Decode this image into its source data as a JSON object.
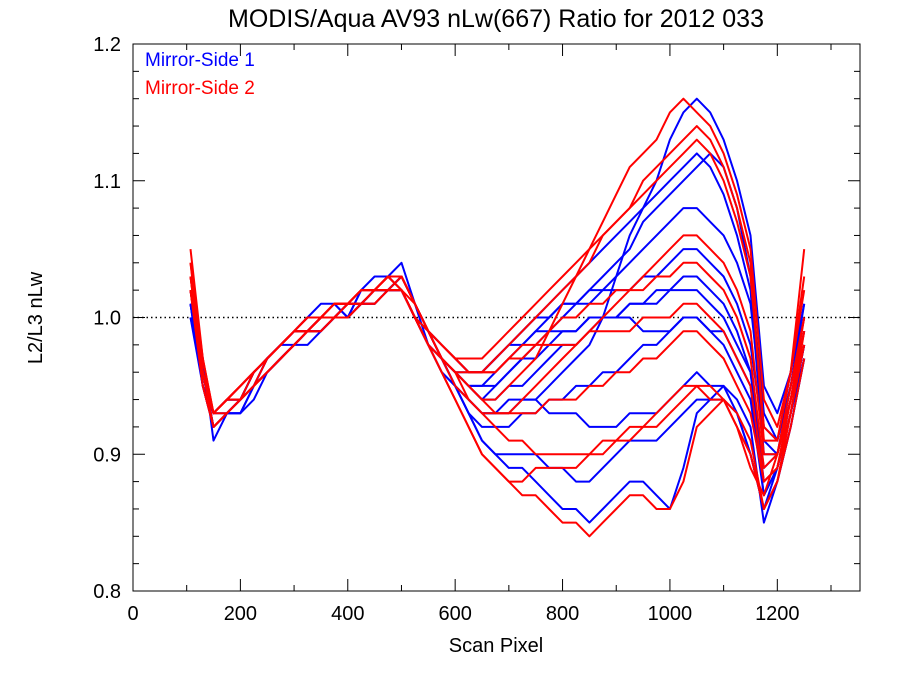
{
  "chart_data": {
    "type": "line",
    "title": "MODIS/Aqua AV93 nLw(667) Ratio for 2012 033",
    "xlabel": "Scan Pixel",
    "ylabel": "L2/L3 nLw",
    "xlim": [
      0,
      1354
    ],
    "ylim": [
      0.8,
      1.2
    ],
    "x_ticks": [
      0,
      200,
      400,
      600,
      800,
      1000,
      1200
    ],
    "x_tick_labels": [
      "0",
      "200",
      "400",
      "600",
      "800",
      "1000",
      "1200"
    ],
    "y_ticks": [
      0.8,
      0.9,
      1.0,
      1.1,
      1.2
    ],
    "y_tick_labels": [
      "0.8",
      "0.9",
      "1.0",
      "1.1",
      "1.2"
    ],
    "reference_line": {
      "y": 1.0,
      "style": "dotted"
    },
    "legend": {
      "position": "top-left",
      "entries": [
        {
          "label": "Mirror-Side 1",
          "color": "#0000ff"
        },
        {
          "label": "Mirror-Side 2",
          "color": "#ff0000"
        }
      ]
    },
    "x": [
      107,
      130,
      150,
      175,
      200,
      225,
      250,
      275,
      300,
      325,
      350,
      375,
      400,
      425,
      450,
      475,
      500,
      525,
      550,
      575,
      600,
      625,
      650,
      675,
      700,
      725,
      750,
      775,
      800,
      825,
      850,
      875,
      900,
      925,
      950,
      975,
      1000,
      1025,
      1050,
      1075,
      1100,
      1125,
      1150,
      1175,
      1200,
      1225,
      1250
    ],
    "series": [
      {
        "color": "#0000ff",
        "values": [
          1.03,
          0.97,
          0.91,
          0.93,
          0.93,
          0.95,
          0.97,
          0.98,
          0.99,
          1.0,
          1.01,
          1.01,
          1.0,
          1.02,
          1.03,
          1.03,
          1.04,
          1.01,
          0.98,
          0.96,
          0.95,
          0.94,
          0.93,
          0.93,
          0.93,
          0.94,
          0.94,
          0.95,
          0.96,
          0.97,
          0.98,
          1.0,
          1.03,
          1.06,
          1.08,
          1.1,
          1.13,
          1.15,
          1.16,
          1.15,
          1.13,
          1.1,
          1.06,
          0.95,
          0.93,
          0.96,
          1.01
        ]
      },
      {
        "color": "#0000ff",
        "values": [
          1.02,
          0.96,
          0.92,
          0.93,
          0.94,
          0.96,
          0.97,
          0.98,
          0.99,
          1.0,
          1.0,
          1.01,
          1.0,
          1.02,
          1.02,
          1.03,
          1.02,
          1.0,
          0.98,
          0.97,
          0.95,
          0.93,
          0.91,
          0.9,
          0.89,
          0.89,
          0.88,
          0.87,
          0.86,
          0.86,
          0.85,
          0.86,
          0.87,
          0.88,
          0.88,
          0.87,
          0.86,
          0.89,
          0.93,
          0.94,
          0.95,
          0.93,
          0.9,
          0.86,
          0.89,
          0.93,
          0.97
        ]
      },
      {
        "color": "#0000ff",
        "values": [
          1.01,
          0.95,
          0.93,
          0.94,
          0.94,
          0.96,
          0.97,
          0.98,
          0.99,
          0.99,
          1.0,
          1.0,
          1.01,
          1.01,
          1.02,
          1.02,
          1.03,
          1.01,
          0.99,
          0.97,
          0.96,
          0.95,
          0.94,
          0.95,
          0.96,
          0.97,
          0.98,
          0.99,
          1.0,
          1.01,
          1.02,
          1.03,
          1.04,
          1.05,
          1.07,
          1.08,
          1.09,
          1.1,
          1.11,
          1.12,
          1.11,
          1.08,
          1.03,
          0.93,
          0.91,
          0.95,
          1.0
        ]
      },
      {
        "color": "#0000ff",
        "values": [
          1.0,
          0.96,
          0.92,
          0.93,
          0.93,
          0.95,
          0.96,
          0.97,
          0.98,
          0.99,
          1.0,
          1.0,
          1.01,
          1.01,
          1.02,
          1.02,
          1.02,
          1.0,
          0.98,
          0.97,
          0.96,
          0.95,
          0.95,
          0.96,
          0.97,
          0.98,
          0.99,
          1.0,
          1.01,
          1.01,
          1.02,
          1.02,
          1.03,
          1.04,
          1.05,
          1.06,
          1.07,
          1.08,
          1.08,
          1.07,
          1.06,
          1.04,
          1.01,
          0.92,
          0.91,
          0.95,
          1.01
        ]
      },
      {
        "color": "#0000ff",
        "values": [
          1.02,
          0.96,
          0.93,
          0.94,
          0.94,
          0.95,
          0.97,
          0.98,
          0.99,
          0.99,
          1.0,
          1.0,
          1.01,
          1.01,
          1.02,
          1.02,
          1.02,
          1.0,
          0.99,
          0.98,
          0.97,
          0.96,
          0.96,
          0.97,
          0.98,
          0.99,
          1.0,
          1.0,
          1.01,
          1.01,
          1.01,
          1.02,
          1.02,
          1.02,
          1.03,
          1.03,
          1.04,
          1.05,
          1.05,
          1.04,
          1.03,
          1.01,
          0.98,
          0.91,
          0.9,
          0.94,
          0.99
        ]
      },
      {
        "color": "#0000ff",
        "values": [
          1.01,
          0.95,
          0.92,
          0.93,
          0.94,
          0.95,
          0.96,
          0.97,
          0.98,
          0.99,
          0.99,
          1.0,
          1.0,
          1.01,
          1.01,
          1.02,
          1.02,
          1.0,
          0.98,
          0.97,
          0.96,
          0.95,
          0.94,
          0.94,
          0.95,
          0.95,
          0.96,
          0.97,
          0.98,
          0.98,
          0.99,
          1.0,
          1.0,
          1.01,
          1.01,
          1.02,
          1.02,
          1.03,
          1.03,
          1.02,
          1.01,
          0.99,
          0.96,
          0.89,
          0.9,
          0.94,
          0.99
        ]
      },
      {
        "color": "#0000ff",
        "values": [
          1.02,
          0.96,
          0.93,
          0.94,
          0.95,
          0.96,
          0.97,
          0.98,
          0.99,
          0.99,
          1.0,
          1.0,
          1.01,
          1.01,
          1.02,
          1.02,
          1.03,
          1.01,
          0.99,
          0.97,
          0.95,
          0.93,
          0.92,
          0.92,
          0.92,
          0.93,
          0.93,
          0.94,
          0.94,
          0.95,
          0.95,
          0.96,
          0.96,
          0.97,
          0.98,
          0.98,
          0.99,
          1.0,
          1.0,
          0.99,
          0.98,
          0.96,
          0.94,
          0.87,
          0.89,
          0.93,
          0.98
        ]
      },
      {
        "color": "#0000ff",
        "values": [
          1.01,
          0.96,
          0.93,
          0.93,
          0.94,
          0.95,
          0.96,
          0.97,
          0.98,
          0.99,
          1.0,
          1.0,
          1.01,
          1.01,
          1.02,
          1.02,
          1.02,
          1.0,
          0.98,
          0.96,
          0.95,
          0.94,
          0.93,
          0.93,
          0.94,
          0.94,
          0.94,
          0.93,
          0.93,
          0.93,
          0.92,
          0.92,
          0.92,
          0.93,
          0.93,
          0.93,
          0.94,
          0.95,
          0.96,
          0.95,
          0.95,
          0.94,
          0.92,
          0.85,
          0.88,
          0.92,
          0.97
        ]
      },
      {
        "color": "#0000ff",
        "values": [
          1.0,
          0.95,
          0.92,
          0.93,
          0.94,
          0.95,
          0.96,
          0.97,
          0.98,
          0.98,
          0.99,
          1.0,
          1.0,
          1.01,
          1.01,
          1.02,
          1.02,
          1.0,
          0.98,
          0.97,
          0.96,
          0.95,
          0.95,
          0.95,
          0.96,
          0.97,
          0.97,
          0.98,
          0.99,
          0.99,
          1.0,
          1.0,
          1.0,
          1.01,
          1.01,
          1.01,
          1.02,
          1.02,
          1.02,
          1.01,
          1.0,
          0.98,
          0.96,
          0.88,
          0.89,
          0.93,
          0.98
        ]
      },
      {
        "color": "#0000ff",
        "values": [
          1.01,
          0.96,
          0.92,
          0.93,
          0.94,
          0.95,
          0.96,
          0.97,
          0.98,
          0.99,
          0.99,
          1.0,
          1.0,
          1.01,
          1.02,
          1.02,
          1.02,
          1.0,
          0.99,
          0.98,
          0.97,
          0.96,
          0.96,
          0.97,
          0.98,
          0.99,
          1.0,
          1.01,
          1.02,
          1.03,
          1.04,
          1.05,
          1.06,
          1.07,
          1.08,
          1.09,
          1.1,
          1.11,
          1.12,
          1.11,
          1.09,
          1.06,
          1.02,
          0.9,
          0.9,
          0.95,
          1.0
        ]
      },
      {
        "color": "#0000ff",
        "values": [
          1.02,
          0.96,
          0.93,
          0.94,
          0.94,
          0.96,
          0.97,
          0.98,
          0.98,
          0.99,
          1.0,
          1.0,
          1.01,
          1.01,
          1.02,
          1.02,
          1.03,
          1.01,
          0.99,
          0.97,
          0.95,
          0.93,
          0.91,
          0.9,
          0.9,
          0.9,
          0.9,
          0.89,
          0.89,
          0.88,
          0.88,
          0.89,
          0.9,
          0.91,
          0.91,
          0.91,
          0.92,
          0.93,
          0.94,
          0.94,
          0.94,
          0.93,
          0.9,
          0.86,
          0.88,
          0.92,
          0.97
        ]
      },
      {
        "color": "#0000ff",
        "values": [
          1.01,
          0.95,
          0.92,
          0.93,
          0.93,
          0.94,
          0.96,
          0.97,
          0.98,
          0.99,
          0.99,
          1.0,
          1.0,
          1.01,
          1.01,
          1.02,
          1.02,
          1.0,
          0.98,
          0.97,
          0.96,
          0.96,
          0.96,
          0.97,
          0.98,
          0.98,
          0.99,
          0.99,
          0.99,
          0.99,
          1.0,
          1.0,
          1.0,
          1.0,
          0.99,
          0.99,
          0.99,
          1.0,
          1.0,
          0.99,
          0.99,
          0.97,
          0.95,
          0.87,
          0.89,
          0.93,
          0.98
        ]
      },
      {
        "color": "#ff0000",
        "values": [
          1.05,
          0.97,
          0.93,
          0.94,
          0.95,
          0.96,
          0.97,
          0.98,
          0.99,
          1.0,
          1.0,
          1.01,
          1.01,
          1.02,
          1.02,
          1.03,
          1.03,
          1.01,
          0.99,
          0.97,
          0.96,
          0.95,
          0.94,
          0.94,
          0.95,
          0.96,
          0.97,
          0.99,
          1.01,
          1.03,
          1.05,
          1.07,
          1.09,
          1.11,
          1.12,
          1.13,
          1.15,
          1.16,
          1.15,
          1.14,
          1.12,
          1.09,
          1.05,
          0.94,
          0.92,
          0.96,
          1.03
        ]
      },
      {
        "color": "#ff0000",
        "values": [
          1.04,
          0.96,
          0.93,
          0.94,
          0.94,
          0.96,
          0.97,
          0.98,
          0.99,
          0.99,
          1.0,
          1.01,
          1.01,
          1.02,
          1.02,
          1.03,
          1.02,
          1.0,
          0.98,
          0.96,
          0.94,
          0.92,
          0.9,
          0.89,
          0.88,
          0.87,
          0.87,
          0.86,
          0.85,
          0.85,
          0.84,
          0.85,
          0.86,
          0.87,
          0.87,
          0.86,
          0.86,
          0.88,
          0.92,
          0.93,
          0.94,
          0.92,
          0.89,
          0.87,
          0.9,
          0.94,
          0.98
        ]
      },
      {
        "color": "#ff0000",
        "values": [
          1.02,
          0.96,
          0.93,
          0.94,
          0.95,
          0.96,
          0.97,
          0.98,
          0.99,
          1.0,
          1.0,
          1.01,
          1.01,
          1.02,
          1.02,
          1.03,
          1.03,
          1.01,
          0.99,
          0.98,
          0.97,
          0.96,
          0.96,
          0.97,
          0.98,
          0.99,
          1.0,
          1.01,
          1.02,
          1.03,
          1.04,
          1.06,
          1.07,
          1.08,
          1.1,
          1.11,
          1.12,
          1.13,
          1.14,
          1.13,
          1.11,
          1.08,
          1.04,
          0.91,
          0.91,
          0.96,
          1.02
        ]
      },
      {
        "color": "#ff0000",
        "values": [
          1.03,
          0.96,
          0.93,
          0.94,
          0.94,
          0.95,
          0.97,
          0.98,
          0.99,
          0.99,
          1.0,
          1.0,
          1.01,
          1.01,
          1.02,
          1.02,
          1.02,
          1.0,
          0.98,
          0.97,
          0.96,
          0.95,
          0.94,
          0.93,
          0.93,
          0.93,
          0.93,
          0.94,
          0.94,
          0.94,
          0.95,
          0.95,
          0.96,
          0.96,
          0.97,
          0.97,
          0.98,
          0.99,
          0.99,
          0.98,
          0.97,
          0.95,
          0.93,
          0.88,
          0.89,
          0.94,
          0.99
        ]
      },
      {
        "color": "#ff0000",
        "values": [
          1.03,
          0.96,
          0.92,
          0.93,
          0.94,
          0.95,
          0.96,
          0.97,
          0.98,
          0.99,
          1.0,
          1.0,
          1.01,
          1.01,
          1.02,
          1.02,
          1.03,
          1.01,
          0.99,
          0.97,
          0.95,
          0.94,
          0.93,
          0.93,
          0.93,
          0.94,
          0.95,
          0.96,
          0.97,
          0.98,
          0.99,
          1.0,
          1.01,
          1.02,
          1.03,
          1.04,
          1.05,
          1.06,
          1.06,
          1.05,
          1.04,
          1.02,
          0.99,
          0.9,
          0.9,
          0.95,
          1.0
        ]
      },
      {
        "color": "#ff0000",
        "values": [
          1.02,
          0.95,
          0.92,
          0.93,
          0.94,
          0.95,
          0.96,
          0.97,
          0.98,
          0.99,
          0.99,
          1.0,
          1.0,
          1.01,
          1.01,
          1.02,
          1.02,
          1.0,
          0.99,
          0.97,
          0.96,
          0.94,
          0.93,
          0.92,
          0.91,
          0.91,
          0.9,
          0.9,
          0.9,
          0.9,
          0.9,
          0.91,
          0.91,
          0.92,
          0.92,
          0.93,
          0.94,
          0.95,
          0.95,
          0.95,
          0.94,
          0.93,
          0.91,
          0.86,
          0.88,
          0.93,
          0.98
        ]
      },
      {
        "color": "#ff0000",
        "values": [
          1.03,
          0.96,
          0.93,
          0.94,
          0.95,
          0.96,
          0.97,
          0.98,
          0.99,
          1.0,
          1.0,
          1.01,
          1.01,
          1.02,
          1.02,
          1.03,
          1.02,
          1.01,
          0.99,
          0.98,
          0.97,
          0.96,
          0.96,
          0.96,
          0.97,
          0.98,
          0.98,
          0.99,
          1.0,
          1.0,
          1.01,
          1.01,
          1.02,
          1.02,
          1.02,
          1.03,
          1.03,
          1.04,
          1.04,
          1.03,
          1.02,
          1.0,
          0.97,
          0.89,
          0.9,
          0.94,
          1.0
        ]
      },
      {
        "color": "#ff0000",
        "values": [
          1.02,
          0.96,
          0.93,
          0.93,
          0.94,
          0.95,
          0.96,
          0.97,
          0.98,
          0.99,
          1.0,
          1.0,
          1.01,
          1.01,
          1.02,
          1.02,
          1.02,
          1.0,
          0.98,
          0.96,
          0.94,
          0.92,
          0.9,
          0.89,
          0.88,
          0.88,
          0.89,
          0.89,
          0.89,
          0.89,
          0.9,
          0.9,
          0.91,
          0.91,
          0.92,
          0.92,
          0.93,
          0.94,
          0.95,
          0.94,
          0.94,
          0.92,
          0.9,
          0.86,
          0.88,
          0.92,
          0.97
        ]
      },
      {
        "color": "#ff0000",
        "values": [
          1.04,
          0.97,
          0.93,
          0.94,
          0.95,
          0.96,
          0.97,
          0.98,
          0.99,
          0.99,
          1.0,
          1.01,
          1.01,
          1.02,
          1.02,
          1.03,
          1.03,
          1.01,
          0.99,
          0.98,
          0.97,
          0.97,
          0.97,
          0.98,
          0.99,
          1.0,
          1.01,
          1.02,
          1.03,
          1.04,
          1.05,
          1.06,
          1.07,
          1.08,
          1.09,
          1.1,
          1.11,
          1.12,
          1.13,
          1.12,
          1.1,
          1.07,
          1.03,
          0.92,
          0.91,
          0.96,
          1.05
        ]
      },
      {
        "color": "#ff0000",
        "values": [
          1.02,
          0.95,
          0.92,
          0.93,
          0.94,
          0.95,
          0.96,
          0.97,
          0.98,
          0.99,
          0.99,
          1.0,
          1.0,
          1.01,
          1.01,
          1.02,
          1.02,
          1.0,
          0.98,
          0.97,
          0.96,
          0.96,
          0.96,
          0.96,
          0.97,
          0.97,
          0.98,
          0.98,
          0.98,
          0.98,
          0.99,
          0.99,
          0.99,
          0.99,
          1.0,
          1.0,
          1.0,
          1.01,
          1.01,
          1.0,
          0.99,
          0.97,
          0.95,
          0.88,
          0.89,
          0.93,
          0.99
        ]
      }
    ]
  }
}
